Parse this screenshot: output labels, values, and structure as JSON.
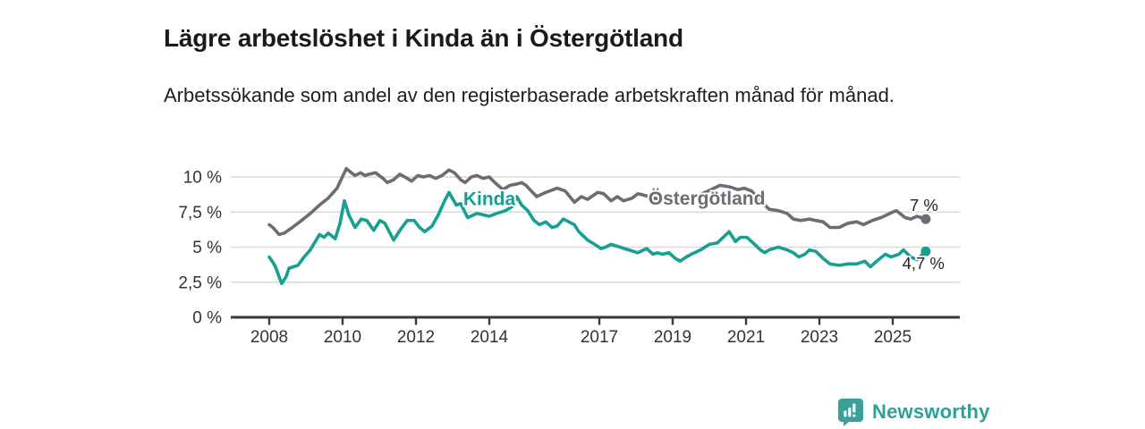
{
  "branding": {
    "name": "Newsworthy",
    "icon": "bar-chart-speech-bubble-icon",
    "color": "#2f9f98"
  },
  "chart_data": {
    "type": "line",
    "title": "Lägre arbetslöshet i Kinda än i Östergötland",
    "subtitle": "Arbetssökande som andel av den registerbaserade arbetskraften månad för månad.",
    "xlabel": "",
    "ylabel": "",
    "grid": "horizontal-only",
    "legend_position": "inline-labels-on-lines",
    "xlim": [
      2006.95,
      2026.9
    ],
    "ylim": [
      0,
      11.1
    ],
    "x_ticks": [
      {
        "year": 2008,
        "label": "2008"
      },
      {
        "year": 2010,
        "label": "2010"
      },
      {
        "year": 2012,
        "label": "2012"
      },
      {
        "year": 2014,
        "label": "2014"
      },
      {
        "year": 2017,
        "label": "2017"
      },
      {
        "year": 2019,
        "label": "2019"
      },
      {
        "year": 2021,
        "label": "2021"
      },
      {
        "year": 2023,
        "label": "2023"
      },
      {
        "year": 2025,
        "label": "2025"
      }
    ],
    "y_ticks": [
      {
        "v": 0,
        "label": "0 %"
      },
      {
        "v": 2.5,
        "label": "2,5 %"
      },
      {
        "v": 5,
        "label": "5 %"
      },
      {
        "v": 7.5,
        "label": "7,5 %"
      },
      {
        "v": 10,
        "label": "10 %"
      }
    ],
    "series": [
      {
        "name": "Östergötland",
        "color": "#6f6b72",
        "end_value": 7.0,
        "end_label": "7 %",
        "end_label_offset": {
          "dx": 14,
          "dy": -9
        },
        "inline_label": {
          "x": 2019.93,
          "y": 8.47
        },
        "points": [
          [
            2008.0,
            6.6
          ],
          [
            2008.1,
            6.4
          ],
          [
            2008.27,
            5.9
          ],
          [
            2008.41,
            6.0
          ],
          [
            2008.63,
            6.4
          ],
          [
            2008.88,
            6.9
          ],
          [
            2009.12,
            7.4
          ],
          [
            2009.37,
            8.0
          ],
          [
            2009.61,
            8.5
          ],
          [
            2009.85,
            9.2
          ],
          [
            2010.1,
            10.6
          ],
          [
            2010.24,
            10.3
          ],
          [
            2010.34,
            10.1
          ],
          [
            2010.49,
            10.3
          ],
          [
            2010.61,
            10.1
          ],
          [
            2010.73,
            10.2
          ],
          [
            2010.9,
            10.3
          ],
          [
            2011.1,
            9.9
          ],
          [
            2011.22,
            9.6
          ],
          [
            2011.39,
            9.8
          ],
          [
            2011.56,
            10.2
          ],
          [
            2011.76,
            9.9
          ],
          [
            2011.88,
            9.7
          ],
          [
            2012.05,
            10.1
          ],
          [
            2012.2,
            10.0
          ],
          [
            2012.37,
            10.1
          ],
          [
            2012.54,
            9.9
          ],
          [
            2012.71,
            10.1
          ],
          [
            2012.9,
            10.5
          ],
          [
            2013.05,
            10.3
          ],
          [
            2013.22,
            9.8
          ],
          [
            2013.34,
            9.6
          ],
          [
            2013.51,
            10.0
          ],
          [
            2013.66,
            10.1
          ],
          [
            2013.83,
            9.9
          ],
          [
            2014.0,
            10.0
          ],
          [
            2014.15,
            9.6
          ],
          [
            2014.37,
            9.1
          ],
          [
            2014.56,
            9.4
          ],
          [
            2014.76,
            9.5
          ],
          [
            2014.88,
            9.6
          ],
          [
            2015.0,
            9.4
          ],
          [
            2015.29,
            8.6
          ],
          [
            2015.54,
            8.9
          ],
          [
            2015.85,
            9.2
          ],
          [
            2016.07,
            9.0
          ],
          [
            2016.32,
            8.2
          ],
          [
            2016.51,
            8.6
          ],
          [
            2016.68,
            8.4
          ],
          [
            2016.95,
            8.9
          ],
          [
            2017.12,
            8.8
          ],
          [
            2017.32,
            8.3
          ],
          [
            2017.49,
            8.6
          ],
          [
            2017.66,
            8.3
          ],
          [
            2017.9,
            8.5
          ],
          [
            2018.05,
            8.8
          ],
          [
            2018.22,
            8.7
          ],
          [
            2018.46,
            8.5
          ],
          [
            2018.71,
            8.4
          ],
          [
            2019.0,
            8.3
          ],
          [
            2019.32,
            8.4
          ],
          [
            2019.56,
            8.5
          ],
          [
            2019.8,
            8.8
          ],
          [
            2020.05,
            9.1
          ],
          [
            2020.29,
            9.4
          ],
          [
            2020.54,
            9.3
          ],
          [
            2020.78,
            9.1
          ],
          [
            2020.95,
            9.2
          ],
          [
            2021.15,
            9.0
          ],
          [
            2021.39,
            8.3
          ],
          [
            2021.63,
            7.7
          ],
          [
            2021.88,
            7.6
          ],
          [
            2022.12,
            7.4
          ],
          [
            2022.29,
            7.0
          ],
          [
            2022.49,
            6.9
          ],
          [
            2022.73,
            7.0
          ],
          [
            2022.9,
            6.9
          ],
          [
            2023.1,
            6.8
          ],
          [
            2023.29,
            6.4
          ],
          [
            2023.54,
            6.4
          ],
          [
            2023.78,
            6.7
          ],
          [
            2024.02,
            6.8
          ],
          [
            2024.2,
            6.6
          ],
          [
            2024.44,
            6.9
          ],
          [
            2024.68,
            7.1
          ],
          [
            2025.0,
            7.5
          ],
          [
            2025.1,
            7.6
          ],
          [
            2025.34,
            7.1
          ],
          [
            2025.49,
            7.0
          ],
          [
            2025.66,
            7.2
          ],
          [
            2025.9,
            7.0
          ]
        ]
      },
      {
        "name": "Kinda",
        "color": "#17a091",
        "end_value": 4.7,
        "end_label": "4,7 %",
        "end_label_offset": {
          "dx": 21,
          "dy": 20
        },
        "inline_label": {
          "x": 2014.0,
          "y": 8.45
        },
        "points": [
          [
            2008.0,
            4.3
          ],
          [
            2008.15,
            3.7
          ],
          [
            2008.34,
            2.4
          ],
          [
            2008.46,
            2.9
          ],
          [
            2008.54,
            3.5
          ],
          [
            2008.78,
            3.7
          ],
          [
            2008.95,
            4.3
          ],
          [
            2009.12,
            4.8
          ],
          [
            2009.37,
            5.9
          ],
          [
            2009.49,
            5.7
          ],
          [
            2009.61,
            6.0
          ],
          [
            2009.8,
            5.6
          ],
          [
            2009.93,
            6.7
          ],
          [
            2010.05,
            8.3
          ],
          [
            2010.17,
            7.3
          ],
          [
            2010.34,
            6.4
          ],
          [
            2010.51,
            7.0
          ],
          [
            2010.66,
            6.9
          ],
          [
            2010.85,
            6.2
          ],
          [
            2011.02,
            6.9
          ],
          [
            2011.15,
            6.7
          ],
          [
            2011.39,
            5.5
          ],
          [
            2011.59,
            6.3
          ],
          [
            2011.76,
            6.9
          ],
          [
            2011.95,
            6.9
          ],
          [
            2012.1,
            6.4
          ],
          [
            2012.24,
            6.1
          ],
          [
            2012.44,
            6.5
          ],
          [
            2012.61,
            7.3
          ],
          [
            2012.78,
            8.3
          ],
          [
            2012.9,
            8.9
          ],
          [
            2013.1,
            8.0
          ],
          [
            2013.22,
            8.1
          ],
          [
            2013.41,
            7.1
          ],
          [
            2013.66,
            7.4
          ],
          [
            2013.83,
            7.3
          ],
          [
            2014.0,
            7.2
          ],
          [
            2014.2,
            7.4
          ],
          [
            2014.44,
            7.6
          ],
          [
            2014.63,
            7.9
          ],
          [
            2014.75,
            8.6
          ],
          [
            2014.88,
            8.0
          ],
          [
            2015.05,
            7.6
          ],
          [
            2015.22,
            6.9
          ],
          [
            2015.37,
            6.6
          ],
          [
            2015.54,
            6.8
          ],
          [
            2015.71,
            6.4
          ],
          [
            2015.85,
            6.5
          ],
          [
            2016.02,
            7.0
          ],
          [
            2016.32,
            6.6
          ],
          [
            2016.44,
            6.1
          ],
          [
            2016.68,
            5.5
          ],
          [
            2016.93,
            5.1
          ],
          [
            2017.05,
            4.9
          ],
          [
            2017.17,
            5.0
          ],
          [
            2017.32,
            5.2
          ],
          [
            2017.56,
            5.0
          ],
          [
            2017.8,
            4.8
          ],
          [
            2018.05,
            4.6
          ],
          [
            2018.29,
            4.9
          ],
          [
            2018.46,
            4.5
          ],
          [
            2018.59,
            4.6
          ],
          [
            2018.71,
            4.5
          ],
          [
            2018.9,
            4.6
          ],
          [
            2019.07,
            4.2
          ],
          [
            2019.2,
            4.0
          ],
          [
            2019.37,
            4.3
          ],
          [
            2019.51,
            4.5
          ],
          [
            2019.76,
            4.8
          ],
          [
            2020.0,
            5.2
          ],
          [
            2020.22,
            5.3
          ],
          [
            2020.54,
            6.1
          ],
          [
            2020.71,
            5.4
          ],
          [
            2020.85,
            5.7
          ],
          [
            2021.02,
            5.7
          ],
          [
            2021.15,
            5.4
          ],
          [
            2021.39,
            4.8
          ],
          [
            2021.51,
            4.6
          ],
          [
            2021.63,
            4.8
          ],
          [
            2021.88,
            5.0
          ],
          [
            2022.12,
            4.8
          ],
          [
            2022.29,
            4.6
          ],
          [
            2022.44,
            4.3
          ],
          [
            2022.61,
            4.5
          ],
          [
            2022.73,
            4.8
          ],
          [
            2022.9,
            4.7
          ],
          [
            2023.1,
            4.2
          ],
          [
            2023.29,
            3.8
          ],
          [
            2023.54,
            3.7
          ],
          [
            2023.78,
            3.8
          ],
          [
            2024.02,
            3.8
          ],
          [
            2024.24,
            4.0
          ],
          [
            2024.39,
            3.6
          ],
          [
            2024.61,
            4.1
          ],
          [
            2024.8,
            4.5
          ],
          [
            2024.95,
            4.3
          ],
          [
            2025.17,
            4.5
          ],
          [
            2025.29,
            4.8
          ],
          [
            2025.49,
            4.3
          ],
          [
            2025.66,
            4.1
          ],
          [
            2025.9,
            4.7
          ]
        ]
      }
    ]
  }
}
